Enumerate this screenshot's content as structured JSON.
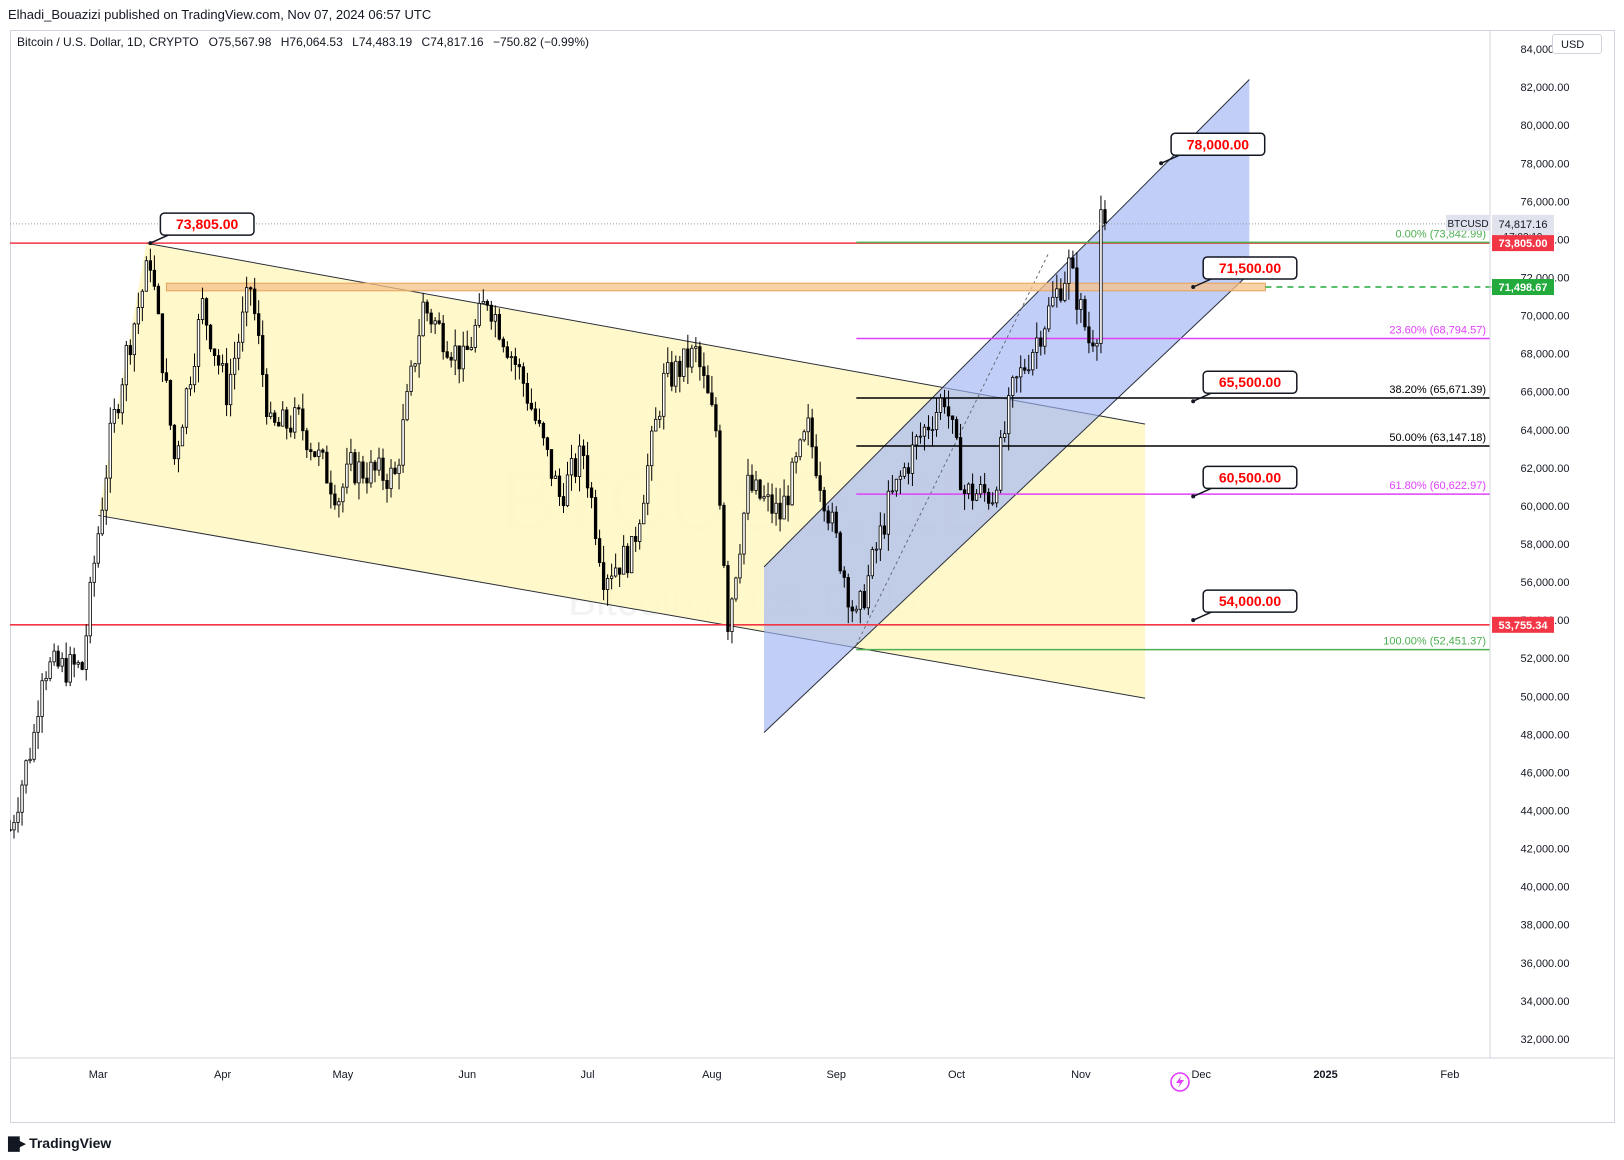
{
  "header": {
    "published": "Elhadi_Bouazizi published on TradingView.com, Nov 07, 2024 06:57 UTC"
  },
  "legend": {
    "symbol": "Bitcoin / U.S. Dollar, 1D, CRYPTO",
    "o_label": "O",
    "o": "75,567.98",
    "h_label": "H",
    "h": "76,064.53",
    "l_label": "L",
    "l": "74,483.19",
    "c_label": "C",
    "c": "74,817.16",
    "change": "−750.82 (−0.99%)"
  },
  "currency": "USD",
  "watermark": {
    "ticker": "BTCUSD, 1D",
    "name": "Bitcoin / U.S. Dollar"
  },
  "footer": {
    "brand": "TradingView"
  },
  "colors": {
    "up": "#ffffff",
    "down": "#000000",
    "resistance": "#f23645",
    "fib_pink": "#e040fb",
    "fib_green": "#4caf50",
    "channel_blue": "#9fb4f5",
    "channel_yellow": "#fff7c2",
    "band_orange": "#f5c28a",
    "callout_text": "#ff0000"
  },
  "chart_data": {
    "type": "candlestick",
    "title": "Bitcoin / U.S. Dollar, 1D, CRYPTO",
    "ylim": [
      31000,
      85000
    ],
    "y_ticks": [
      "84,000.00",
      "82,000.00",
      "80,000.00",
      "78,000.00",
      "76,000.00",
      "74,000.00",
      "72,000.00",
      "70,000.00",
      "68,000.00",
      "66,000.00",
      "64,000.00",
      "62,000.00",
      "60,000.00",
      "58,000.00",
      "56,000.00",
      "54,000.00",
      "52,000.00",
      "50,000.00",
      "48,000.00",
      "46,000.00",
      "44,000.00",
      "42,000.00",
      "40,000.00",
      "38,000.00",
      "36,000.00",
      "34,000.00",
      "32,000.00"
    ],
    "x_ticks": [
      "Mar",
      "Apr",
      "May",
      "Jun",
      "Jul",
      "Aug",
      "Sep",
      "Oct",
      "Nov",
      "Dec",
      "2025",
      "Feb"
    ],
    "x_range": [
      "2024-02-08",
      "2025-02-11"
    ],
    "x_tick_dates": [
      "2024-03-01",
      "2024-04-01",
      "2024-05-01",
      "2024-06-01",
      "2024-07-01",
      "2024-08-01",
      "2024-09-01",
      "2024-10-01",
      "2024-11-01",
      "2024-12-01",
      "2025-01-01",
      "2025-02-01"
    ],
    "path_anchors": [
      [
        "2024-02-08",
        43000
      ],
      [
        "2024-02-14",
        48000
      ],
      [
        "2024-02-16",
        51500
      ],
      [
        "2024-02-26",
        51500
      ],
      [
        "2024-02-29",
        57000
      ],
      [
        "2024-03-04",
        63500
      ],
      [
        "2024-03-08",
        68000
      ],
      [
        "2024-03-14",
        73000
      ],
      [
        "2024-03-20",
        62500
      ],
      [
        "2024-03-27",
        70500
      ],
      [
        "2024-04-02",
        66000
      ],
      [
        "2024-04-08",
        71500
      ],
      [
        "2024-04-13",
        64000
      ],
      [
        "2024-04-20",
        64500
      ],
      [
        "2024-04-30",
        60500
      ],
      [
        "2024-05-03",
        62000
      ],
      [
        "2024-05-14",
        61500
      ],
      [
        "2024-05-21",
        70500
      ],
      [
        "2024-05-31",
        67500
      ],
      [
        "2024-06-06",
        71000
      ],
      [
        "2024-06-15",
        66500
      ],
      [
        "2024-06-24",
        60500
      ],
      [
        "2024-06-30",
        62800
      ],
      [
        "2024-07-05",
        56500
      ],
      [
        "2024-07-12",
        57500
      ],
      [
        "2024-07-20",
        66500
      ],
      [
        "2024-07-28",
        68000
      ],
      [
        "2024-08-02",
        64000
      ],
      [
        "2024-08-05",
        54000
      ],
      [
        "2024-08-10",
        61000
      ],
      [
        "2024-08-18",
        59500
      ],
      [
        "2024-08-25",
        64000
      ],
      [
        "2024-09-06",
        53900
      ],
      [
        "2024-09-14",
        60000
      ],
      [
        "2024-09-21",
        63300
      ],
      [
        "2024-09-28",
        65800
      ],
      [
        "2024-10-03",
        60700
      ],
      [
        "2024-10-10",
        60600
      ],
      [
        "2024-10-15",
        66000
      ],
      [
        "2024-10-21",
        68800
      ],
      [
        "2024-10-29",
        72600
      ],
      [
        "2024-11-03",
        68700
      ],
      [
        "2024-11-05",
        69400
      ],
      [
        "2024-11-06",
        75600
      ],
      [
        "2024-11-07",
        74817
      ]
    ],
    "series": [
      {
        "name": "BTCUSD",
        "last": 74817.16,
        "open": 75567.98,
        "high": 76064.53,
        "low": 74483.19,
        "close": 74817.16
      }
    ],
    "drawings": {
      "descending_channel": {
        "upper": [
          [
            "2024-03-13",
            73800
          ],
          [
            "2024-11-17",
            64300
          ]
        ],
        "lower": [
          [
            "2024-03-01",
            59500
          ],
          [
            "2024-11-17",
            49900
          ]
        ],
        "fill_to": "2024-11-17"
      },
      "ascending_channel": {
        "lower": [
          [
            "2024-08-14",
            48100
          ],
          [
            "2024-12-13",
            72200
          ]
        ],
        "upper": [
          [
            "2024-08-14",
            56800
          ],
          [
            "2024-12-13",
            82400
          ]
        ]
      },
      "resistance_lines": [
        73805,
        53755.34
      ],
      "orange_band": {
        "from": 71300,
        "to": 71700,
        "start": "2024-03-18",
        "end": "2024-12-17"
      },
      "fib_levels": [
        {
          "label": "0.00% (73,842.99)",
          "value": 73842.99,
          "color": "#4caf50"
        },
        {
          "label": "23.60% (68,794.57)",
          "value": 68794.57,
          "color": "#e040fb"
        },
        {
          "label": "38.20% (65,671.39)",
          "value": 65671.39,
          "color": "#000000"
        },
        {
          "label": "50.00% (63,147.18)",
          "value": 63147.18,
          "color": "#000000"
        },
        {
          "label": "61.80% (60,622.97)",
          "value": 60622.97,
          "color": "#e040fb"
        },
        {
          "label": "100.00% (52,451.37)",
          "value": 52451.37,
          "color": "#4caf50"
        }
      ],
      "fib_start": "2024-09-06",
      "callouts": [
        {
          "text": "73,805.00",
          "value": 73805,
          "date": "2024-03-14"
        },
        {
          "text": "78,000.00",
          "value": 78000,
          "date": "2024-11-21"
        },
        {
          "text": "71,500.00",
          "value": 71500,
          "date": "2024-11-29"
        },
        {
          "text": "65,500.00",
          "value": 65500,
          "date": "2024-11-29"
        },
        {
          "text": "60,500.00",
          "value": 60500,
          "date": "2024-11-29"
        },
        {
          "text": "54,000.00",
          "value": 54000,
          "date": "2024-11-29"
        }
      ]
    },
    "price_labels": [
      {
        "text": "74,817.16",
        "sub": "17:02:19",
        "tag": "BTCUSD",
        "value": 74817.16,
        "bg": "#e0e3eb",
        "fg": "#131722"
      },
      {
        "text": "73,805.00",
        "value": 73805,
        "bg": "#f23645",
        "fg": "#ffffff"
      },
      {
        "text": "71,498.67",
        "value": 71498.67,
        "bg": "#22ab3c",
        "fg": "#ffffff"
      },
      {
        "text": "53,755.34",
        "value": 53755.34,
        "bg": "#f23645",
        "fg": "#ffffff"
      }
    ]
  }
}
